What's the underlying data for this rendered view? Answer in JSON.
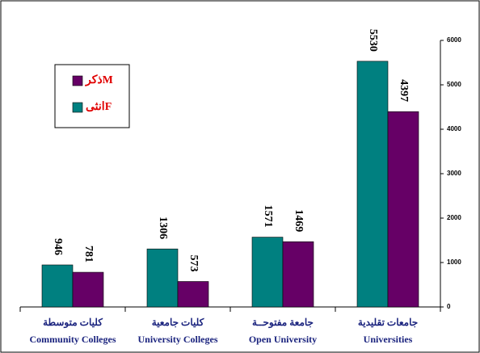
{
  "chart_data": {
    "type": "bar",
    "categories": [
      [
        "كليات متوسطة",
        "Community Colleges"
      ],
      [
        "كليات جامعية",
        "University Colleges"
      ],
      [
        "جامعة مفتوحــة",
        "Open University"
      ],
      [
        "جامعات تقليدية",
        "Universities"
      ]
    ],
    "series": [
      {
        "name": "انثىF",
        "color": "#008080",
        "values": [
          946,
          1306,
          1571,
          5530
        ]
      },
      {
        "name": "ذكرM",
        "color": "#660066",
        "values": [
          781,
          573,
          1469,
          4397
        ]
      }
    ],
    "ylim": [
      0,
      6000
    ],
    "yticks": [
      0,
      1000,
      2000,
      3000,
      4000,
      5000,
      6000
    ],
    "grid": false,
    "y_axis_side": "right",
    "legend": "upper left"
  }
}
